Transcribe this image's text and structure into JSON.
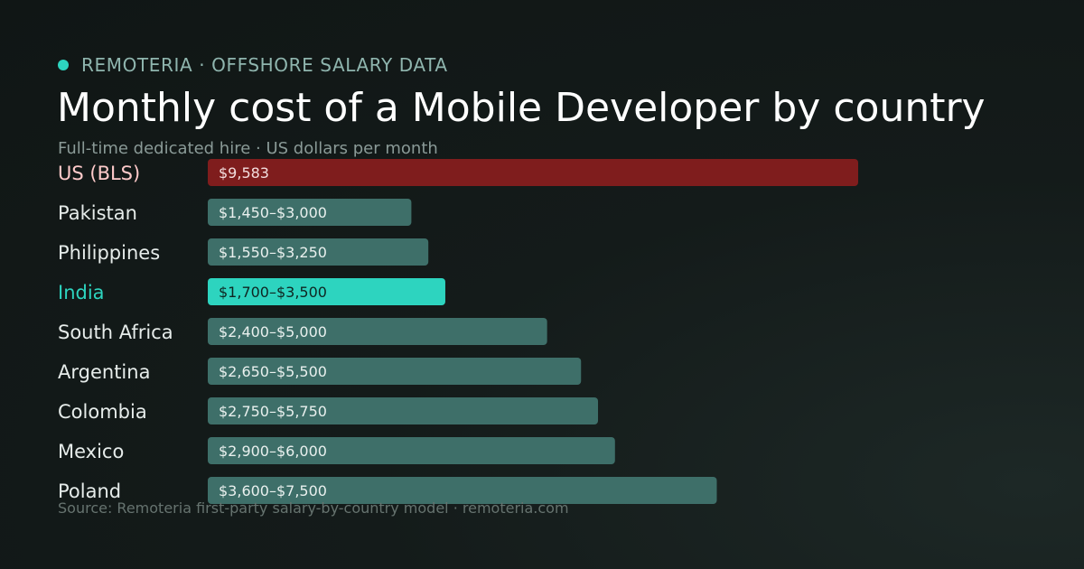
{
  "brand": {
    "kicker": "REMOTERIA · OFFSHORE SALARY DATA",
    "dot_color": "#2dd4bf"
  },
  "chart_data": {
    "type": "bar",
    "orientation": "horizontal",
    "title": "Monthly cost of a Mobile Developer by country",
    "subtitle": "Full-time dedicated hire · US dollars per month",
    "categories": [
      "US (BLS)",
      "Pakistan",
      "Philippines",
      "India",
      "South Africa",
      "Argentina",
      "Colombia",
      "Mexico",
      "Poland"
    ],
    "values": [
      9583,
      3000,
      3250,
      3500,
      5000,
      5500,
      5750,
      6000,
      7500
    ],
    "value_labels": [
      "$9,583",
      "$1,450–$3,000",
      "$1,550–$3,250",
      "$1,700–$3,500",
      "$2,400–$5,000",
      "$2,650–$5,500",
      "$2,750–$5,750",
      "$2,900–$6,000",
      "$3,600–$7,500"
    ],
    "highlight": {
      "US (BLS)": {
        "bar": "#7f1d1d",
        "label": "#fecaca",
        "text": "#f3dede"
      },
      "India": {
        "bar": "#2dd4bf",
        "label": "#2dd4bf",
        "text": "#0f2622"
      }
    },
    "default_colors": {
      "bar": "#3e6f69",
      "label": "#e6ecea",
      "text": "#e9f0ee"
    },
    "xlim": [
      0,
      9583
    ],
    "grid": false
  },
  "footer": {
    "source": "Source: Remoteria first-party salary-by-country model · remoteria.com"
  }
}
